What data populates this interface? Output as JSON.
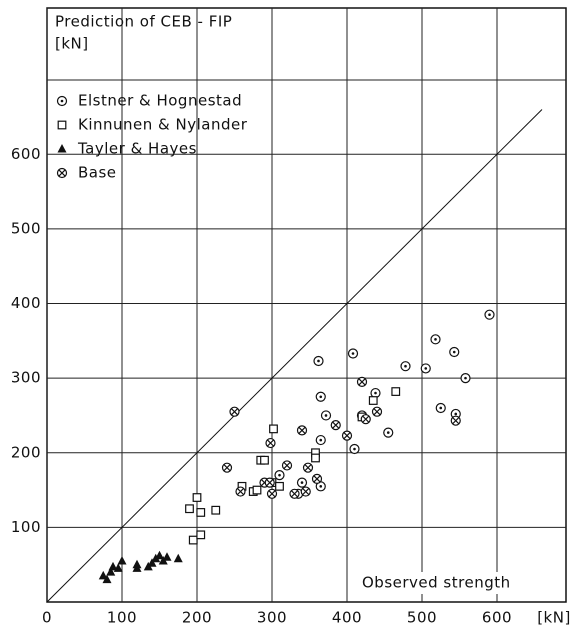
{
  "chart_data": {
    "type": "scatter",
    "title": "Prediction of CEB - FIP",
    "y_unit": "[kN]",
    "x_label": "Observed strength",
    "x_unit": "[kN]",
    "xlim": [
      0,
      692
    ],
    "ylim": [
      0,
      796
    ],
    "xticks": [
      0,
      100,
      200,
      300,
      400,
      500,
      600
    ],
    "yticks": [
      100,
      200,
      300,
      400,
      500,
      600
    ],
    "grid": true,
    "legend": "upper left",
    "reference_line": {
      "x": [
        0,
        660
      ],
      "y": [
        0,
        660
      ]
    },
    "series": [
      {
        "name": "Elstner & Hognestad",
        "marker": "circle-dot",
        "color": "#111",
        "x": [
          362,
          408,
          518,
          478,
          505,
          543,
          590,
          558,
          525,
          545,
          455,
          410,
          365,
          372,
          365,
          365,
          310,
          340,
          335,
          420,
          438
        ],
        "values": [
          323,
          333,
          352,
          316,
          313,
          335,
          385,
          300,
          260,
          252,
          227,
          205,
          275,
          250,
          217,
          155,
          170,
          160,
          145,
          250,
          280
        ]
      },
      {
        "name": "Kinnunen & Nylander",
        "marker": "square",
        "color": "#111",
        "x": [
          302,
          285,
          290,
          275,
          260,
          300,
          310,
          358,
          358,
          420,
          465,
          435,
          200,
          205,
          225,
          190,
          195,
          205,
          280
        ],
        "values": [
          232,
          190,
          190,
          148,
          155,
          160,
          155,
          200,
          193,
          248,
          282,
          270,
          140,
          120,
          123,
          125,
          83,
          90,
          150
        ]
      },
      {
        "name": "Tayler & Hayes",
        "marker": "triangle",
        "color": "#111",
        "x": [
          75,
          80,
          85,
          88,
          95,
          100,
          120,
          120,
          135,
          140,
          145,
          150,
          160,
          155,
          175
        ],
        "values": [
          35,
          30,
          40,
          47,
          45,
          55,
          45,
          50,
          47,
          52,
          58,
          62,
          60,
          55,
          58
        ]
      },
      {
        "name": "Base",
        "marker": "circle-cross",
        "color": "#111",
        "x": [
          250,
          240,
          258,
          290,
          297,
          298,
          320,
          300,
          330,
          345,
          340,
          348,
          360,
          385,
          400,
          420,
          425,
          440,
          545
        ],
        "values": [
          255,
          180,
          148,
          160,
          160,
          213,
          183,
          145,
          145,
          148,
          230,
          180,
          165,
          237,
          223,
          295,
          245,
          255,
          243
        ]
      }
    ]
  }
}
